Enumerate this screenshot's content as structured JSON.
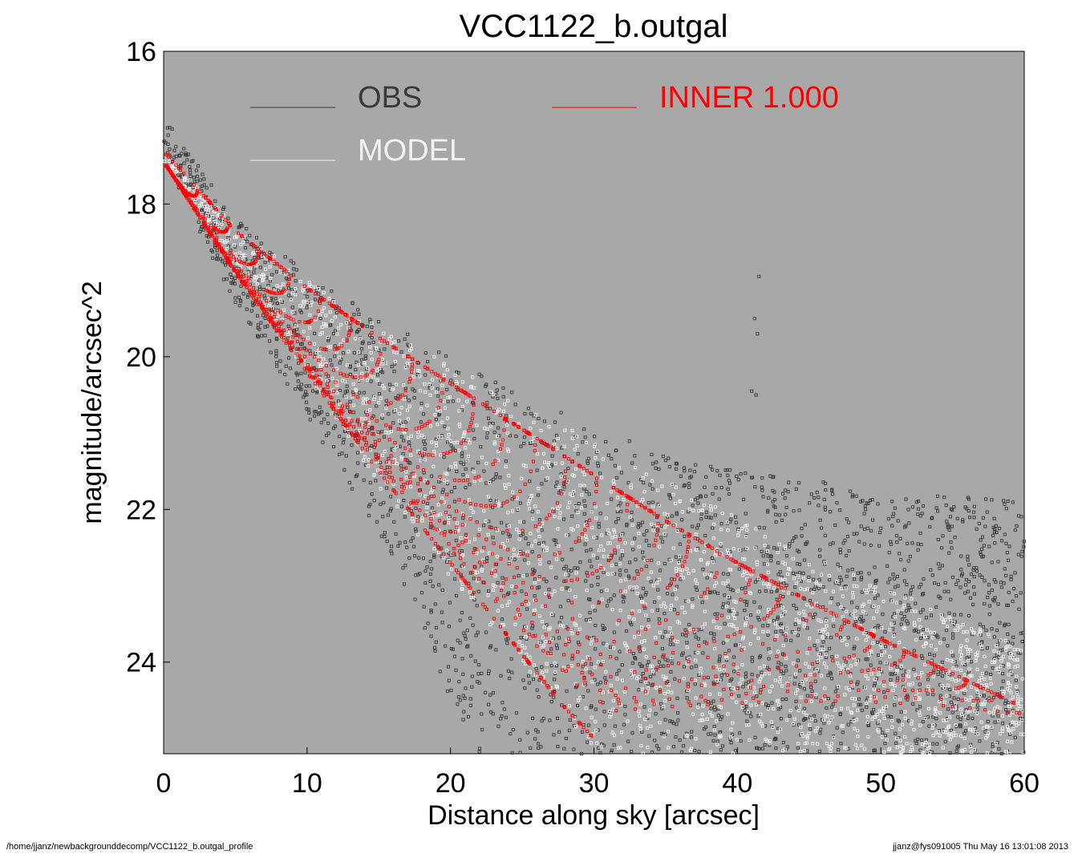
{
  "chart_data": {
    "type": "scatter",
    "title": "VCC1122_b.outgal",
    "xlabel": "Distance along sky [arcsec]",
    "ylabel": "magnitude/arcsec^2",
    "xlim": [
      0,
      60
    ],
    "ylim": [
      25.2,
      16
    ],
    "y_inverted": true,
    "x_ticks": [
      "0",
      "10",
      "20",
      "30",
      "40",
      "50",
      "60"
    ],
    "y_ticks": [
      "16",
      "18",
      "20",
      "22",
      "24"
    ],
    "grid": false,
    "legend_placement": "top",
    "colors": {
      "background": "#a8a8a8",
      "obs": "#3a3a3a",
      "model": "#f2f2f2",
      "inner": "#ff0000"
    },
    "legend": [
      {
        "key": "obs",
        "label": "OBS"
      },
      {
        "key": "inner",
        "label": "INNER  1.000"
      },
      {
        "key": "model",
        "label": "MODEL"
      }
    ],
    "series": [
      {
        "name": "OBS",
        "key": "obs",
        "description_points": [
          [
            0.2,
            16.9
          ],
          [
            5,
            18.3
          ],
          [
            10,
            19.2
          ],
          [
            20,
            20.3
          ],
          [
            30,
            21.2
          ],
          [
            40,
            21.8
          ],
          [
            50,
            22.3
          ],
          [
            60,
            22.8
          ]
        ],
        "upper_envelope": [
          [
            0.2,
            16.9
          ],
          [
            5,
            18.2
          ],
          [
            10,
            18.9
          ],
          [
            15,
            19.5
          ],
          [
            20,
            20.0
          ],
          [
            25,
            20.5
          ],
          [
            30,
            20.9
          ],
          [
            35,
            21.3
          ],
          [
            40,
            21.5
          ],
          [
            45,
            21.6
          ],
          [
            50,
            21.8
          ],
          [
            55,
            21.8
          ],
          [
            60,
            21.9
          ]
        ],
        "lower_envelope": [
          [
            0.2,
            17.5
          ],
          [
            5,
            19.3
          ],
          [
            10,
            20.8
          ],
          [
            15,
            22.3
          ],
          [
            18,
            23.5
          ],
          [
            20,
            24.5
          ],
          [
            22,
            25.2
          ]
        ],
        "outliers": [
          [
            41.5,
            18.95
          ],
          [
            41.2,
            19.5
          ],
          [
            41.4,
            19.7
          ],
          [
            41.0,
            20.45
          ],
          [
            41.3,
            20.5
          ]
        ]
      },
      {
        "name": "MODEL",
        "key": "model",
        "upper_envelope": [
          [
            0.2,
            17.35
          ],
          [
            5,
            18.3
          ],
          [
            10,
            19.0
          ],
          [
            15,
            19.6
          ],
          [
            20,
            20.1
          ],
          [
            25,
            20.6
          ],
          [
            30,
            21.1
          ],
          [
            35,
            21.6
          ],
          [
            40,
            22.1
          ],
          [
            45,
            22.6
          ],
          [
            50,
            23.0
          ],
          [
            55,
            23.4
          ],
          [
            60,
            23.8
          ]
        ],
        "lower_envelope": [
          [
            0.2,
            17.5
          ],
          [
            5,
            18.9
          ],
          [
            10,
            20.3
          ],
          [
            15,
            21.7
          ],
          [
            20,
            22.9
          ],
          [
            25,
            24.0
          ],
          [
            30,
            25.2
          ]
        ]
      },
      {
        "name": "INNER  1.000",
        "key": "inner",
        "upper_envelope": [
          [
            0.2,
            17.35
          ],
          [
            5,
            18.35
          ],
          [
            10,
            19.1
          ],
          [
            15,
            19.75
          ],
          [
            20,
            20.35
          ],
          [
            25,
            20.95
          ],
          [
            30,
            21.55
          ],
          [
            35,
            22.15
          ],
          [
            40,
            22.7
          ],
          [
            45,
            23.2
          ],
          [
            50,
            23.7
          ],
          [
            55,
            24.15
          ],
          [
            60,
            24.6
          ]
        ],
        "lower_envelope": [
          [
            0.2,
            17.5
          ],
          [
            5,
            18.9
          ],
          [
            10,
            20.2
          ],
          [
            15,
            21.5
          ],
          [
            20,
            22.7
          ],
          [
            25,
            23.9
          ],
          [
            28,
            24.6
          ],
          [
            31,
            25.2
          ]
        ],
        "arcs": 28
      }
    ]
  },
  "footer": {
    "left": "/home/jjanz/newbackgrounddecomp/VCC1122_b.outgal_profile",
    "right": "jjanz@fys091005  Thu May 16 13:01:08 2013"
  }
}
